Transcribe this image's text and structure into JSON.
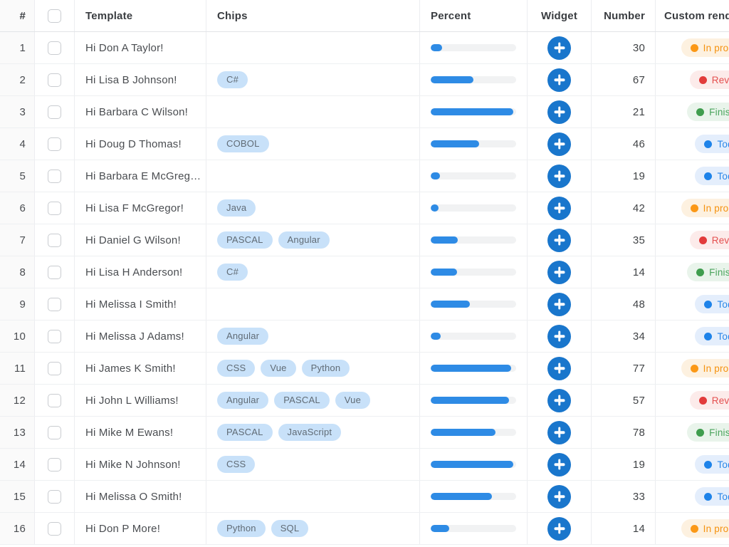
{
  "header": {
    "hash": "#",
    "template": "Template",
    "chips": "Chips",
    "percent": "Percent",
    "widget": "Widget",
    "number": "Number",
    "custom": "Custom render"
  },
  "colors": {
    "accent_blue": "#1976cc",
    "bar_fill": "#2e8be5",
    "bar_track": "#f1f2f3",
    "chip_bg": "#c8e1f9",
    "chip_text": "#606b75",
    "row_border": "#eef0f2"
  },
  "status_styles": {
    "In progress": {
      "bg": "#fdf1e0",
      "dot": "#fb9816",
      "text": "#f5920f"
    },
    "Review": {
      "bg": "#fcebea",
      "dot": "#e23b3b",
      "text": "#e54f4f"
    },
    "Finished": {
      "bg": "#e9f4eb",
      "dot": "#3f9d4e",
      "text": "#4aa45c"
    },
    "Todo": {
      "bg": "#e4eefc",
      "dot": "#1e83e9",
      "text": "#2b87e8"
    }
  },
  "rows": [
    {
      "num": 1,
      "template": "Hi Don A Taylor!",
      "chips": [],
      "percent": 13,
      "number": 30,
      "status": "In progress"
    },
    {
      "num": 2,
      "template": "Hi Lisa B Johnson!",
      "chips": [
        "C#"
      ],
      "percent": 50,
      "number": 67,
      "status": "Review"
    },
    {
      "num": 3,
      "template": "Hi Barbara C Wilson!",
      "chips": [],
      "percent": 97,
      "number": 21,
      "status": "Finished"
    },
    {
      "num": 4,
      "template": "Hi Doug D Thomas!",
      "chips": [
        "COBOL"
      ],
      "percent": 57,
      "number": 46,
      "status": "Todo"
    },
    {
      "num": 5,
      "template": "Hi Barbara E McGreg…",
      "chips": [],
      "percent": 11,
      "number": 19,
      "status": "Todo"
    },
    {
      "num": 6,
      "template": "Hi Lisa F McGregor!",
      "chips": [
        "Java"
      ],
      "percent": 9,
      "number": 42,
      "status": "In progress"
    },
    {
      "num": 7,
      "template": "Hi Daniel G Wilson!",
      "chips": [
        "PASCAL",
        "Angular"
      ],
      "percent": 32,
      "number": 35,
      "status": "Review"
    },
    {
      "num": 8,
      "template": "Hi Lisa H Anderson!",
      "chips": [
        "C#"
      ],
      "percent": 31,
      "number": 14,
      "status": "Finished"
    },
    {
      "num": 9,
      "template": "Hi Melissa I Smith!",
      "chips": [],
      "percent": 46,
      "number": 48,
      "status": "Todo"
    },
    {
      "num": 10,
      "template": "Hi Melissa J Adams!",
      "chips": [
        "Angular"
      ],
      "percent": 12,
      "number": 34,
      "status": "Todo"
    },
    {
      "num": 11,
      "template": "Hi James K Smith!",
      "chips": [
        "CSS",
        "Vue",
        "Python"
      ],
      "percent": 94,
      "number": 77,
      "status": "In progress"
    },
    {
      "num": 12,
      "template": "Hi John L Williams!",
      "chips": [
        "Angular",
        "PASCAL",
        "Vue"
      ],
      "percent": 92,
      "number": 57,
      "status": "Review"
    },
    {
      "num": 13,
      "template": "Hi Mike M Ewans!",
      "chips": [
        "PASCAL",
        "JavaScript"
      ],
      "percent": 76,
      "number": 78,
      "status": "Finished"
    },
    {
      "num": 14,
      "template": "Hi Mike N Johnson!",
      "chips": [
        "CSS"
      ],
      "percent": 97,
      "number": 19,
      "status": "Todo"
    },
    {
      "num": 15,
      "template": "Hi Melissa O Smith!",
      "chips": [],
      "percent": 72,
      "number": 33,
      "status": "Todo"
    },
    {
      "num": 16,
      "template": "Hi Don P More!",
      "chips": [
        "Python",
        "SQL"
      ],
      "percent": 22,
      "number": 14,
      "status": "In progress"
    }
  ]
}
